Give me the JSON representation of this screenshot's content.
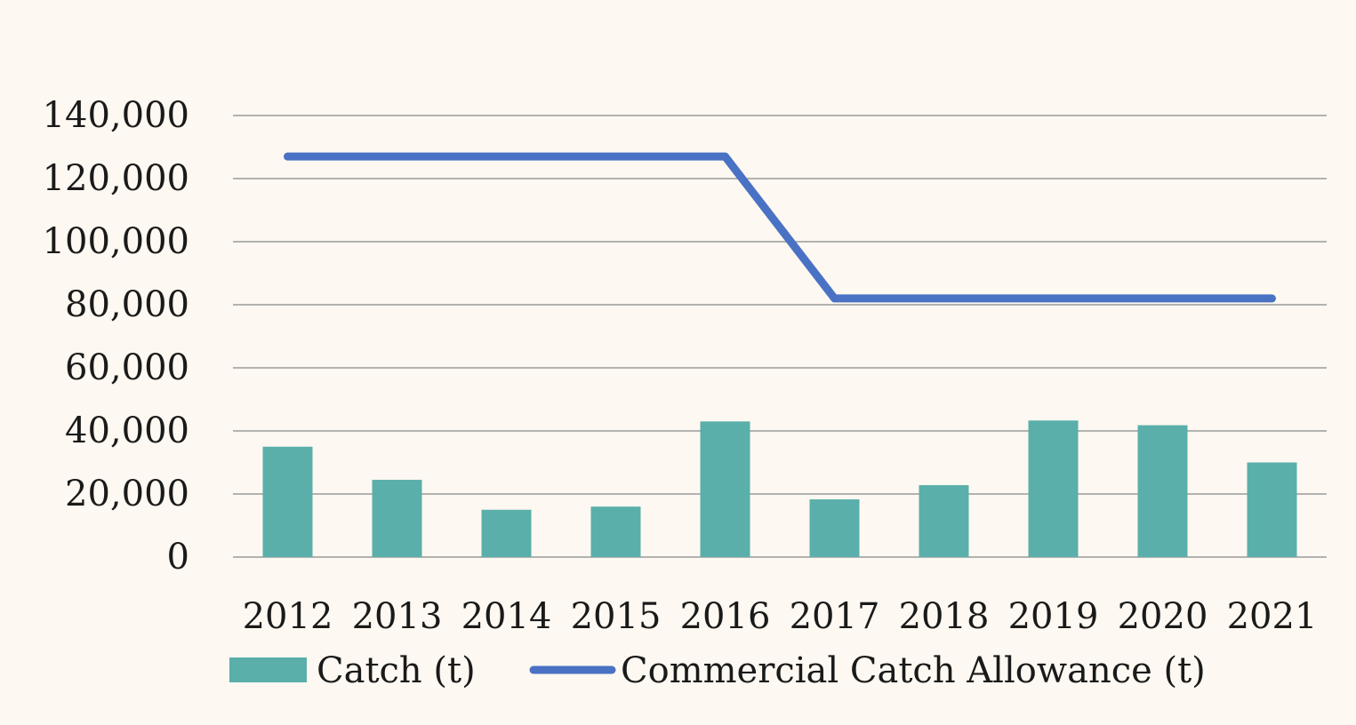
{
  "chart_data": {
    "type": "bar",
    "categories": [
      "2012",
      "2013",
      "2014",
      "2015",
      "2016",
      "2017",
      "2018",
      "2019",
      "2020",
      "2021"
    ],
    "series": [
      {
        "name": "Catch (t)",
        "type": "bar",
        "color": "#5aafaa",
        "values": [
          35000,
          24500,
          15000,
          16000,
          43000,
          18300,
          22800,
          43300,
          41800,
          30000
        ]
      },
      {
        "name": "Commercial Catch Allowance (t)",
        "type": "line",
        "color": "#4a72c4",
        "values": [
          127000,
          127000,
          127000,
          127000,
          127000,
          82000,
          82000,
          82000,
          82000,
          82000
        ]
      }
    ],
    "ylim": [
      0,
      140000
    ],
    "yticks": [
      0,
      20000,
      40000,
      60000,
      80000,
      100000,
      120000,
      140000
    ],
    "ytick_labels": [
      "0",
      "20,000",
      "40,000",
      "60,000",
      "80,000",
      "100,000",
      "120,000",
      "140,000"
    ],
    "grid": true,
    "legend": {
      "position": "bottom",
      "items": [
        "Catch (t)",
        "Commercial Catch Allowance (t)"
      ]
    }
  },
  "colors": {
    "background": "#fdf8f1",
    "gridline": "#9a9a9a",
    "bar": "#5aafaa",
    "line": "#4a72c4",
    "text": "#1a1a1a"
  }
}
